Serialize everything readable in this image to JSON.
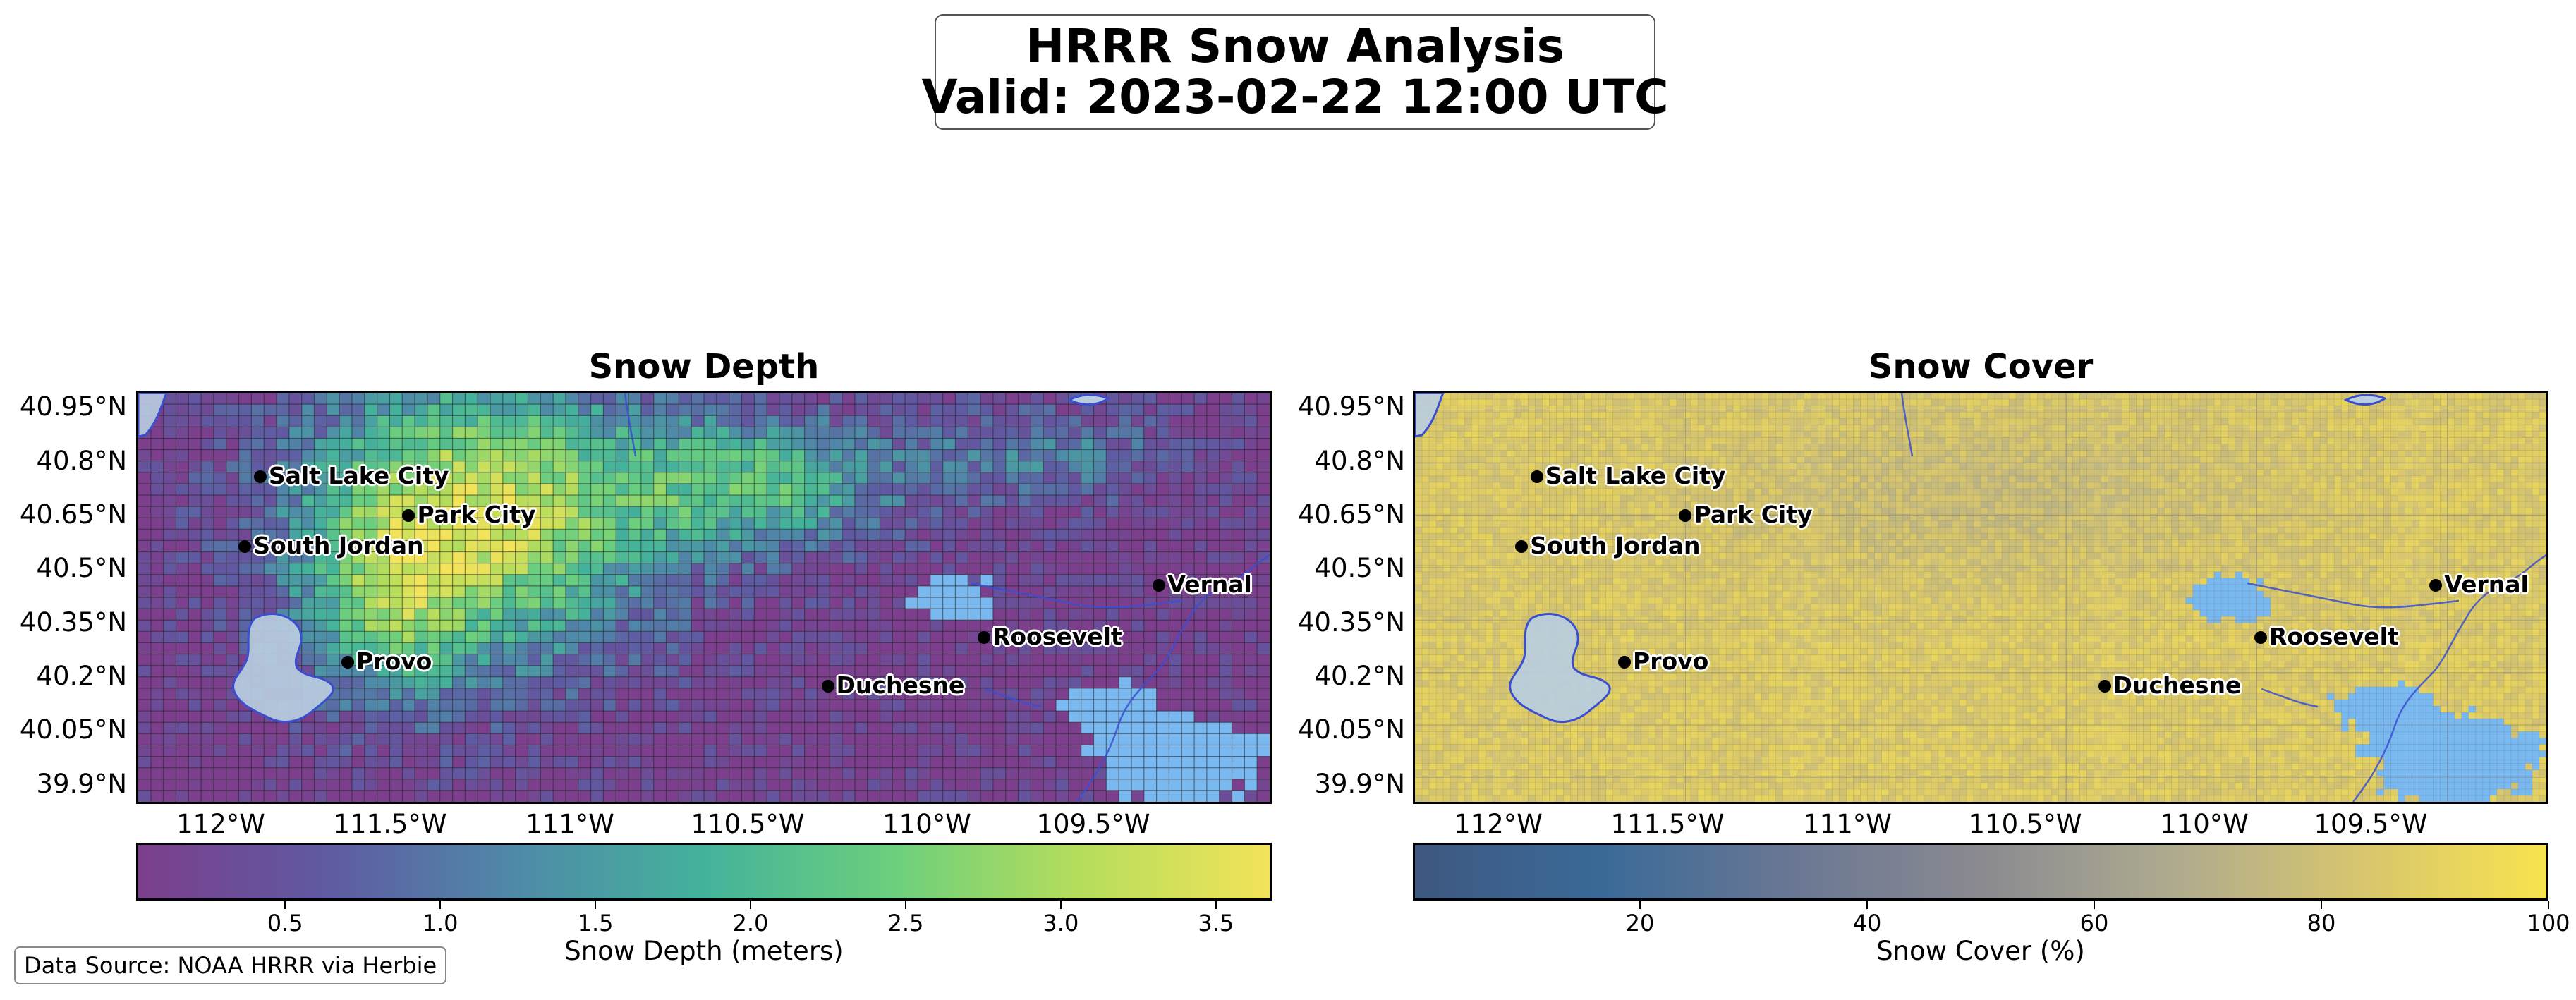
{
  "title": {
    "line1": "HRRR Snow Analysis",
    "line2": "Valid: 2023-02-22 12:00 UTC"
  },
  "source_note": "Data Source: NOAA HRRR via Herbie",
  "axes": {
    "lat_labels": [
      "40.95°N",
      "40.8°N",
      "40.65°N",
      "40.5°N",
      "40.35°N",
      "40.2°N",
      "40.05°N",
      "39.9°N"
    ],
    "lon_labels": [
      "112°W",
      "111.5°W",
      "111°W",
      "110.5°W",
      "110°W",
      "109.5°W"
    ]
  },
  "cities": [
    {
      "name": "Salt Lake City",
      "lon": -111.89,
      "lat": 40.76
    },
    {
      "name": "Park City",
      "lon": -111.5,
      "lat": 40.65
    },
    {
      "name": "South Jordan",
      "lon": -111.93,
      "lat": 40.56
    },
    {
      "name": "Provo",
      "lon": -111.66,
      "lat": 40.23
    },
    {
      "name": "Vernal",
      "lon": -109.53,
      "lat": 40.45
    },
    {
      "name": "Roosevelt",
      "lon": -109.99,
      "lat": 40.3
    },
    {
      "name": "Duchesne",
      "lon": -110.4,
      "lat": 40.16
    }
  ],
  "panels": [
    {
      "title": "Snow Depth",
      "colorbar_label": "Snow Depth (meters)",
      "colorbar_ticks": [
        "0.5",
        "1.0",
        "1.5",
        "2.0",
        "2.5",
        "3.0",
        "3.5"
      ],
      "colorbar_range": [
        0.02,
        3.68
      ],
      "colormap": [
        "#7b3f8c",
        "#5f5aa2",
        "#4f8aa8",
        "#44b29b",
        "#6ccf7d",
        "#b6dd5c",
        "#f2e35a"
      ]
    },
    {
      "title": "Snow Cover",
      "colorbar_label": "Snow Cover (%)",
      "colorbar_ticks": [
        "20",
        "40",
        "60",
        "80",
        "100"
      ],
      "colorbar_range": [
        0,
        100
      ],
      "colormap": [
        "#3e5880",
        "#3a6a98",
        "#6a7794",
        "#8a8a90",
        "#aeaa8f",
        "#d6c56f",
        "#f8e34e"
      ]
    }
  ],
  "colors": {
    "lake": "#b9cde0",
    "lake_edge": "#3a4fd0",
    "no_snow": "#7ab8f0",
    "grid_line": "#222222"
  }
}
